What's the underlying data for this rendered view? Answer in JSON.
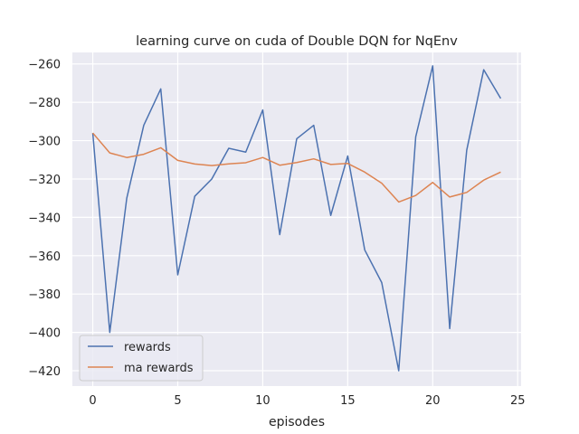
{
  "chart_data": {
    "type": "line",
    "title": "learning curve on cuda of Double DQN for NqEnv",
    "xlabel": "episodes",
    "ylabel": "",
    "x": [
      0,
      1,
      2,
      3,
      4,
      5,
      6,
      7,
      8,
      9,
      10,
      11,
      12,
      13,
      14,
      15,
      16,
      17,
      18,
      19,
      20,
      21,
      22,
      23,
      24
    ],
    "xlim": [
      -1.2,
      25.2
    ],
    "ylim": [
      -428,
      -254
    ],
    "xticks": [
      0,
      5,
      10,
      15,
      20,
      25
    ],
    "yticks": [
      -420,
      -400,
      -380,
      -360,
      -340,
      -320,
      -300,
      -280,
      -260
    ],
    "grid": true,
    "legend_position": "lower-left",
    "series": [
      {
        "name": "rewards",
        "color": "#4c72b0",
        "values": [
          -296,
          -400,
          -330,
          -292,
          -273,
          -370,
          -329,
          -320,
          -304,
          -306,
          -284,
          -349,
          -299,
          -292,
          -339,
          -308,
          -357,
          -374,
          -420,
          -298,
          -261,
          -398,
          -305,
          -263,
          -278
        ]
      },
      {
        "name": "ma rewards",
        "color": "#dd8452",
        "values": [
          -296,
          -306.4,
          -308.8,
          -307.1,
          -303.7,
          -310.3,
          -312.2,
          -313.0,
          -312.1,
          -311.5,
          -308.8,
          -312.8,
          -311.4,
          -309.5,
          -312.4,
          -311.9,
          -316.4,
          -322.2,
          -332.0,
          -328.6,
          -321.8,
          -329.4,
          -327.0,
          -320.6,
          -316.4
        ]
      }
    ]
  }
}
